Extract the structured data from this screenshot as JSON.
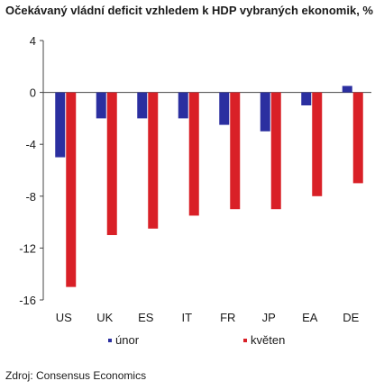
{
  "chart_data": {
    "type": "bar",
    "title": "Očekávaný vládní deficit vzhledem k HDP vybraných ekonomik, %",
    "categories": [
      "US",
      "UK",
      "ES",
      "IT",
      "FR",
      "JP",
      "EA",
      "DE"
    ],
    "series": [
      {
        "name": "únor",
        "color": "#2b2fa0",
        "values": [
          -5.0,
          -2.0,
          -2.0,
          -2.0,
          -2.5,
          -3.0,
          -1.0,
          0.5
        ]
      },
      {
        "name": "květen",
        "color": "#d92027",
        "values": [
          -15.0,
          -11.0,
          -10.5,
          -9.5,
          -9.0,
          -9.0,
          -8.0,
          -7.0
        ]
      }
    ],
    "ylim": [
      -16,
      4
    ],
    "yticks": [
      4,
      0,
      -4,
      -8,
      -12,
      -16
    ],
    "ytick_labels": [
      "4",
      "0",
      "-4",
      "-8",
      "-12",
      "-16"
    ],
    "grid": false,
    "legend_position": "bottom",
    "source": "Zdroj: Consensus Economics"
  }
}
